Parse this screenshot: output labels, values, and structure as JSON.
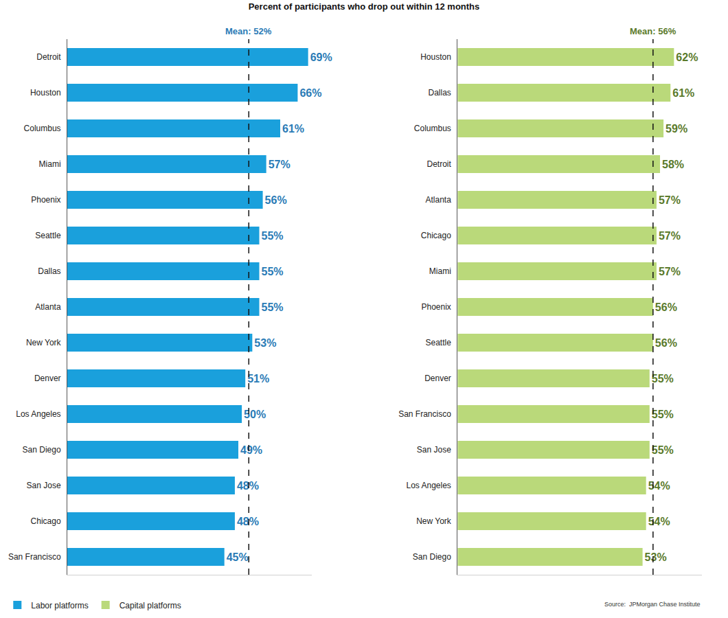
{
  "title": "Percent of participants who drop out within 12 months",
  "source": "Source:  JPMorgan Chase Institute",
  "legend": "bottom left",
  "chart_data": [
    {
      "type": "bar",
      "orientation": "horizontal",
      "data_labels": true,
      "tick_labels": "y",
      "categories": [
        "Detroit",
        "Houston",
        "Columbus",
        "Miami",
        "Phoenix",
        "Seattle",
        "Dallas",
        "Atlanta",
        "New York",
        "Denver",
        "Los Angeles",
        "San Diego",
        "San Jose",
        "Chicago",
        "San Francisco"
      ],
      "series": [
        {
          "name": "Labor platforms",
          "color": "#1aa0dc",
          "values": [
            69,
            66,
            61,
            57,
            56,
            55,
            55,
            55,
            53,
            51,
            50,
            49,
            48,
            48,
            45
          ],
          "value_labels": [
            "69%",
            "66%",
            "61%",
            "57%",
            "56%",
            "55%",
            "55%",
            "55%",
            "53%",
            "51%",
            "50%",
            "49%",
            "48%",
            "48%",
            "45%"
          ]
        }
      ],
      "mean": {
        "value": 52,
        "label": "Mean: 52%"
      },
      "xlim": [
        0,
        70
      ],
      "xticks": []
    },
    {
      "type": "bar",
      "orientation": "horizontal",
      "data_labels": true,
      "tick_labels": "y",
      "categories": [
        "Houston",
        "Dallas",
        "Columbus",
        "Detroit",
        "Atlanta",
        "Chicago",
        "Miami",
        "Phoenix",
        "Seattle",
        "Denver",
        "San Francisco",
        "San Jose",
        "Los Angeles",
        "New York",
        "San Diego"
      ],
      "series": [
        {
          "name": "Capital platforms",
          "color": "#bad97a",
          "values": [
            62,
            61,
            59,
            58,
            57,
            57,
            57,
            56,
            56,
            55,
            55,
            55,
            54,
            54,
            53
          ],
          "value_labels": [
            "62%",
            "61%",
            "59%",
            "58%",
            "57%",
            "57%",
            "57%",
            "56%",
            "56%",
            "55%",
            "55%",
            "55%",
            "54%",
            "54%",
            "53%"
          ]
        }
      ],
      "mean": {
        "value": 56,
        "label": "Mean: 56%"
      },
      "xlim": [
        0,
        70
      ],
      "xticks": []
    }
  ]
}
